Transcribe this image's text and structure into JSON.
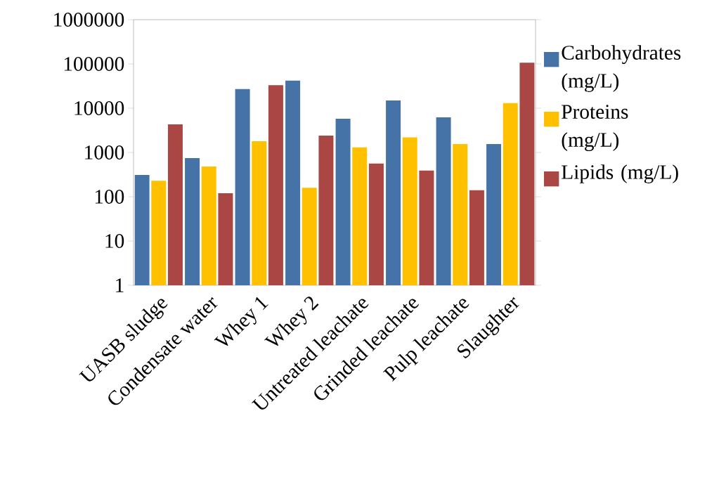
{
  "chart_data": {
    "type": "bar",
    "log": true,
    "categories": [
      "UASB sludge",
      "Condensate water",
      "Whey 1",
      "Whey 2",
      "Untreated leachate",
      "Grinded leachate",
      "Pulp leachate",
      "Slaughter"
    ],
    "series": [
      {
        "name": "Carbohydrates (mg/L)",
        "color": "#4572a7",
        "values": [
          310,
          750,
          27000,
          42000,
          5800,
          15000,
          6200,
          1550
        ]
      },
      {
        "name": "Proteins (mg/L)",
        "color": "#ffc000",
        "values": [
          230,
          480,
          1800,
          160,
          1300,
          2200,
          1550,
          13000
        ]
      },
      {
        "name": "Lipids (mg/L)",
        "color": "#aa4643",
        "values": [
          4300,
          120,
          33000,
          2400,
          560,
          390,
          140,
          107000
        ]
      }
    ],
    "ylim": [
      1,
      1000000
    ],
    "yticks": [
      1,
      10,
      100,
      1000,
      10000,
      100000,
      1000000
    ],
    "legend": "right"
  }
}
